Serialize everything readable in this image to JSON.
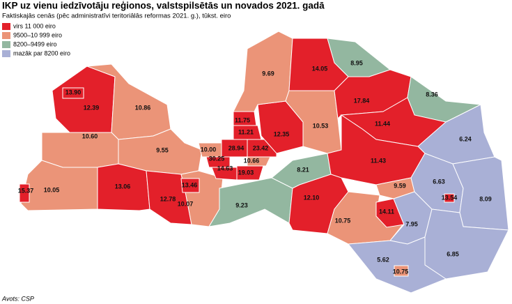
{
  "header": {
    "title": "IKP uz vienu iedzīvotāju reģionos, valstspilsētās un novados 2021. gadā",
    "subtitle": "Faktiskajās cenās (pēc administratīvi teritoriālās reformas 2021. g.), tūkst. eiro"
  },
  "legend": [
    {
      "label": "virs 11 000 eiro",
      "color": "#e3202a"
    },
    {
      "label": "9500–10 999 eiro",
      "color": "#eb9478"
    },
    {
      "label": "8200–9499 eiro",
      "color": "#93b7a0"
    },
    {
      "label": "mazāk par 8200 eiro",
      "color": "#a9b0d6"
    }
  ],
  "regions": [
    {
      "value": 12.39,
      "color": "#e3202a"
    },
    {
      "value": 13.9,
      "value_label": "13.90",
      "color": "#e3202a"
    },
    {
      "value": 10.86,
      "color": "#eb9478"
    },
    {
      "value": 10.6,
      "value_label": "10.60",
      "color": "#eb9478"
    },
    {
      "value": 9.55,
      "color": "#eb9478"
    },
    {
      "value": 10.05,
      "color": "#eb9478"
    },
    {
      "value": 15.37,
      "color": "#e3202a"
    },
    {
      "value": 13.06,
      "color": "#e3202a"
    },
    {
      "value": 12.78,
      "color": "#e3202a"
    },
    {
      "value": 10.07,
      "color": "#eb9478"
    },
    {
      "value": 13.46,
      "color": "#e3202a"
    },
    {
      "value": 9.23,
      "color": "#93b7a0"
    },
    {
      "value": 8.21,
      "color": "#93b7a0"
    },
    {
      "value": 10.0,
      "value_label": "10.00",
      "color": "#eb9478"
    },
    {
      "value": 28.94,
      "color": "#e3202a"
    },
    {
      "value": 30.25,
      "color": "#e3202a"
    },
    {
      "value": 14.63,
      "color": "#e3202a"
    },
    {
      "value": 19.03,
      "color": "#e3202a"
    },
    {
      "value": 10.66,
      "color": "#eb9478"
    },
    {
      "value": 23.42,
      "color": "#e3202a"
    },
    {
      "value": 11.21,
      "color": "#e3202a"
    },
    {
      "value": 11.75,
      "color": "#e3202a"
    },
    {
      "value": 12.35,
      "color": "#e3202a"
    },
    {
      "value": 9.69,
      "color": "#eb9478"
    },
    {
      "value": 14.05,
      "color": "#e3202a"
    },
    {
      "value": 8.95,
      "color": "#93b7a0"
    },
    {
      "value": 10.53,
      "color": "#eb9478"
    },
    {
      "value": 17.84,
      "color": "#e3202a"
    },
    {
      "value": 8.36,
      "color": "#93b7a0"
    },
    {
      "value": 11.44,
      "color": "#e3202a"
    },
    {
      "value": 6.24,
      "color": "#a9b0d6"
    },
    {
      "value": 11.43,
      "color": "#e3202a"
    },
    {
      "value": 12.1,
      "value_label": "12.10",
      "color": "#e3202a"
    },
    {
      "value": 9.59,
      "color": "#eb9478"
    },
    {
      "value": 10.75,
      "color": "#eb9478"
    },
    {
      "value": 14.11,
      "color": "#e3202a"
    },
    {
      "value": 7.95,
      "color": "#a9b0d6"
    },
    {
      "value": 6.63,
      "color": "#a9b0d6"
    },
    {
      "value": 13.54,
      "color": "#e3202a"
    },
    {
      "value": 8.09,
      "color": "#a9b0d6"
    },
    {
      "value": 6.85,
      "color": "#a9b0d6"
    },
    {
      "value": 5.62,
      "color": "#a9b0d6"
    },
    {
      "value": 10.75,
      "color": "#eb9478"
    }
  ],
  "footer": {
    "source": "Avots: CSP"
  }
}
